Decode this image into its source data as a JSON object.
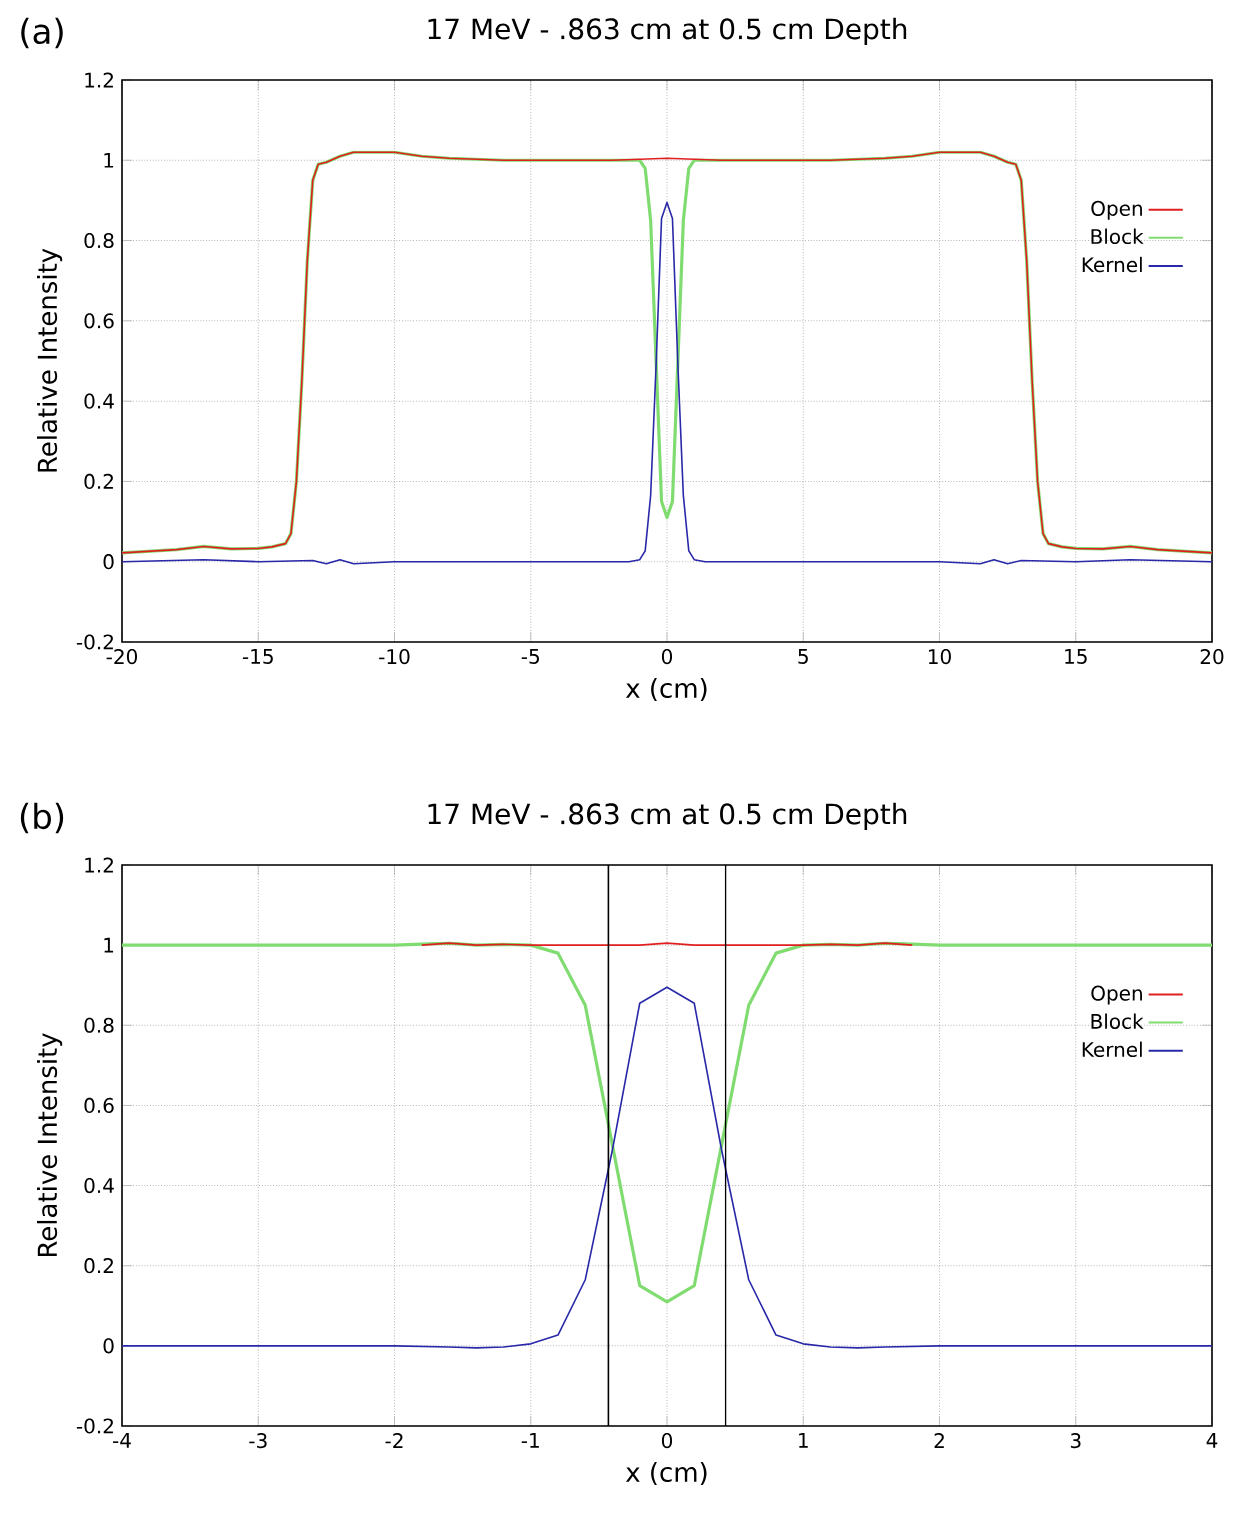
{
  "chart_data": [
    {
      "type": "line",
      "title": "17 MeV - .863 cm at 0.5 cm Depth",
      "xlabel": "x (cm)",
      "ylabel": "Relative Intensity",
      "annotations": [
        "(a)"
      ],
      "xlim": [
        -20,
        20
      ],
      "ylim": [
        -0.2,
        1.2
      ],
      "xticks": [
        -20,
        -15,
        -10,
        -5,
        0,
        5,
        10,
        15,
        20
      ],
      "yticks": [
        -0.2,
        0,
        0.2,
        0.4,
        0.6,
        0.8,
        1,
        1.2
      ],
      "grid": true,
      "legend": "top right",
      "series": [
        {
          "name": "Open",
          "color": "#e02020",
          "x": [
            -20,
            -18,
            -17,
            -16,
            -15,
            -14.5,
            -14,
            -13.8,
            -13.6,
            -13.4,
            -13.2,
            -13,
            -12.8,
            -12.5,
            -12,
            -11.5,
            -10,
            -9,
            -8,
            -6,
            -4,
            -2,
            0,
            2,
            4,
            6,
            8,
            9,
            10,
            11.5,
            12,
            12.5,
            12.8,
            13,
            13.2,
            13.4,
            13.6,
            13.8,
            14,
            14.5,
            15,
            16,
            17,
            18,
            20
          ],
          "values": [
            0.022,
            0.03,
            0.038,
            0.032,
            0.033,
            0.037,
            0.045,
            0.07,
            0.2,
            0.45,
            0.75,
            0.95,
            0.99,
            0.995,
            1.01,
            1.02,
            1.02,
            1.01,
            1.005,
            1.0,
            1.0,
            1.0,
            1.005,
            1.0,
            1.0,
            1.0,
            1.005,
            1.01,
            1.02,
            1.02,
            1.01,
            0.995,
            0.99,
            0.95,
            0.75,
            0.45,
            0.2,
            0.07,
            0.045,
            0.037,
            0.033,
            0.032,
            0.038,
            0.03,
            0.022
          ]
        },
        {
          "name": "Block",
          "color": "#80dc70",
          "x": [
            -20,
            -18,
            -17,
            -16,
            -15,
            -14.5,
            -14,
            -13.8,
            -13.6,
            -13.4,
            -13.2,
            -13,
            -12.8,
            -12.5,
            -12,
            -11.5,
            -10,
            -9,
            -8,
            -6,
            -4,
            -2,
            -1.4,
            -1,
            -0.8,
            -0.6,
            -0.4,
            -0.2,
            0,
            0.2,
            0.4,
            0.6,
            0.8,
            1,
            1.4,
            2,
            4,
            6,
            8,
            9,
            10,
            11.5,
            12,
            12.5,
            12.8,
            13,
            13.2,
            13.4,
            13.6,
            13.8,
            14,
            14.5,
            15,
            16,
            17,
            18,
            20
          ],
          "values": [
            0.022,
            0.03,
            0.038,
            0.032,
            0.033,
            0.037,
            0.045,
            0.07,
            0.2,
            0.45,
            0.75,
            0.95,
            0.99,
            0.995,
            1.01,
            1.02,
            1.02,
            1.01,
            1.005,
            1.0,
            1.0,
            1.0,
            1.0,
            1.0,
            0.98,
            0.85,
            0.5,
            0.15,
            0.11,
            0.15,
            0.5,
            0.85,
            0.98,
            1.0,
            1.0,
            1.0,
            1.0,
            1.0,
            1.005,
            1.01,
            1.02,
            1.02,
            1.01,
            0.995,
            0.99,
            0.95,
            0.75,
            0.45,
            0.2,
            0.07,
            0.045,
            0.037,
            0.033,
            0.032,
            0.038,
            0.03,
            0.022
          ]
        },
        {
          "name": "Kernel",
          "color": "#2828a8",
          "x": [
            -20,
            -17,
            -15,
            -13,
            -12.5,
            -12,
            -11.5,
            -10,
            -5,
            -1.4,
            -1,
            -0.8,
            -0.6,
            -0.4,
            -0.2,
            0,
            0.2,
            0.4,
            0.6,
            0.8,
            1,
            1.4,
            5,
            10,
            11.5,
            12,
            12.5,
            13,
            15,
            17,
            20
          ],
          "values": [
            0,
            0.005,
            0,
            0.003,
            -0.005,
            0.005,
            -0.005,
            0,
            0,
            0,
            0.005,
            0.027,
            0.165,
            0.49,
            0.855,
            0.895,
            0.855,
            0.49,
            0.165,
            0.027,
            0.005,
            0,
            0,
            0,
            -0.005,
            0.005,
            -0.005,
            0.003,
            0,
            0.005,
            0
          ]
        }
      ]
    },
    {
      "type": "line",
      "title": "17 MeV - .863 cm at 0.5 cm Depth",
      "xlabel": "x (cm)",
      "ylabel": "Relative Intensity",
      "annotations": [
        "(b)"
      ],
      "xlim": [
        -4,
        4
      ],
      "ylim": [
        -0.2,
        1.2
      ],
      "xticks": [
        -4,
        -3,
        -2,
        -1,
        0,
        1,
        2,
        3,
        4
      ],
      "yticks": [
        -0.2,
        0,
        0.2,
        0.4,
        0.6,
        0.8,
        1,
        1.2
      ],
      "grid": true,
      "legend": "top right",
      "ref_lines": [
        {
          "axis": "x",
          "value": -0.43,
          "color": "#000000"
        },
        {
          "axis": "x",
          "value": 0.43,
          "color": "#000000"
        }
      ],
      "series": [
        {
          "name": "Open",
          "color": "#e02020",
          "x": [
            -1.8,
            -1.6,
            -1.4,
            -1.2,
            -1,
            -0.2,
            0,
            0.2,
            1,
            1.2,
            1.4,
            1.6,
            1.8
          ],
          "values": [
            1,
            1.005,
            1,
            1.002,
            1,
            1,
            1.005,
            1,
            1,
            1.002,
            1,
            1.005,
            1
          ]
        },
        {
          "name": "Block",
          "color": "#80dc70",
          "x": [
            -4,
            -3,
            -2,
            -1.6,
            -1.4,
            -1.2,
            -1,
            -0.8,
            -0.6,
            -0.4,
            -0.2,
            0,
            0.2,
            0.4,
            0.6,
            0.8,
            1,
            1.2,
            1.4,
            1.6,
            2,
            3,
            4
          ],
          "values": [
            1,
            1,
            1,
            1.005,
            1,
            1.002,
            1,
            0.98,
            0.85,
            0.5,
            0.15,
            0.11,
            0.15,
            0.5,
            0.85,
            0.98,
            1,
            1.002,
            1,
            1.005,
            1,
            1,
            1
          ]
        },
        {
          "name": "Kernel",
          "color": "#2828a8",
          "x": [
            -4,
            -2,
            -1.6,
            -1.4,
            -1.2,
            -1,
            -0.8,
            -0.6,
            -0.4,
            -0.2,
            0,
            0.2,
            0.4,
            0.6,
            0.8,
            1,
            1.2,
            1.4,
            1.6,
            2,
            4
          ],
          "values": [
            0,
            0,
            -0.003,
            -0.005,
            -0.003,
            0.005,
            0.027,
            0.165,
            0.49,
            0.855,
            0.895,
            0.855,
            0.49,
            0.165,
            0.027,
            0.005,
            -0.003,
            -0.005,
            -0.003,
            0,
            0
          ]
        }
      ]
    }
  ]
}
